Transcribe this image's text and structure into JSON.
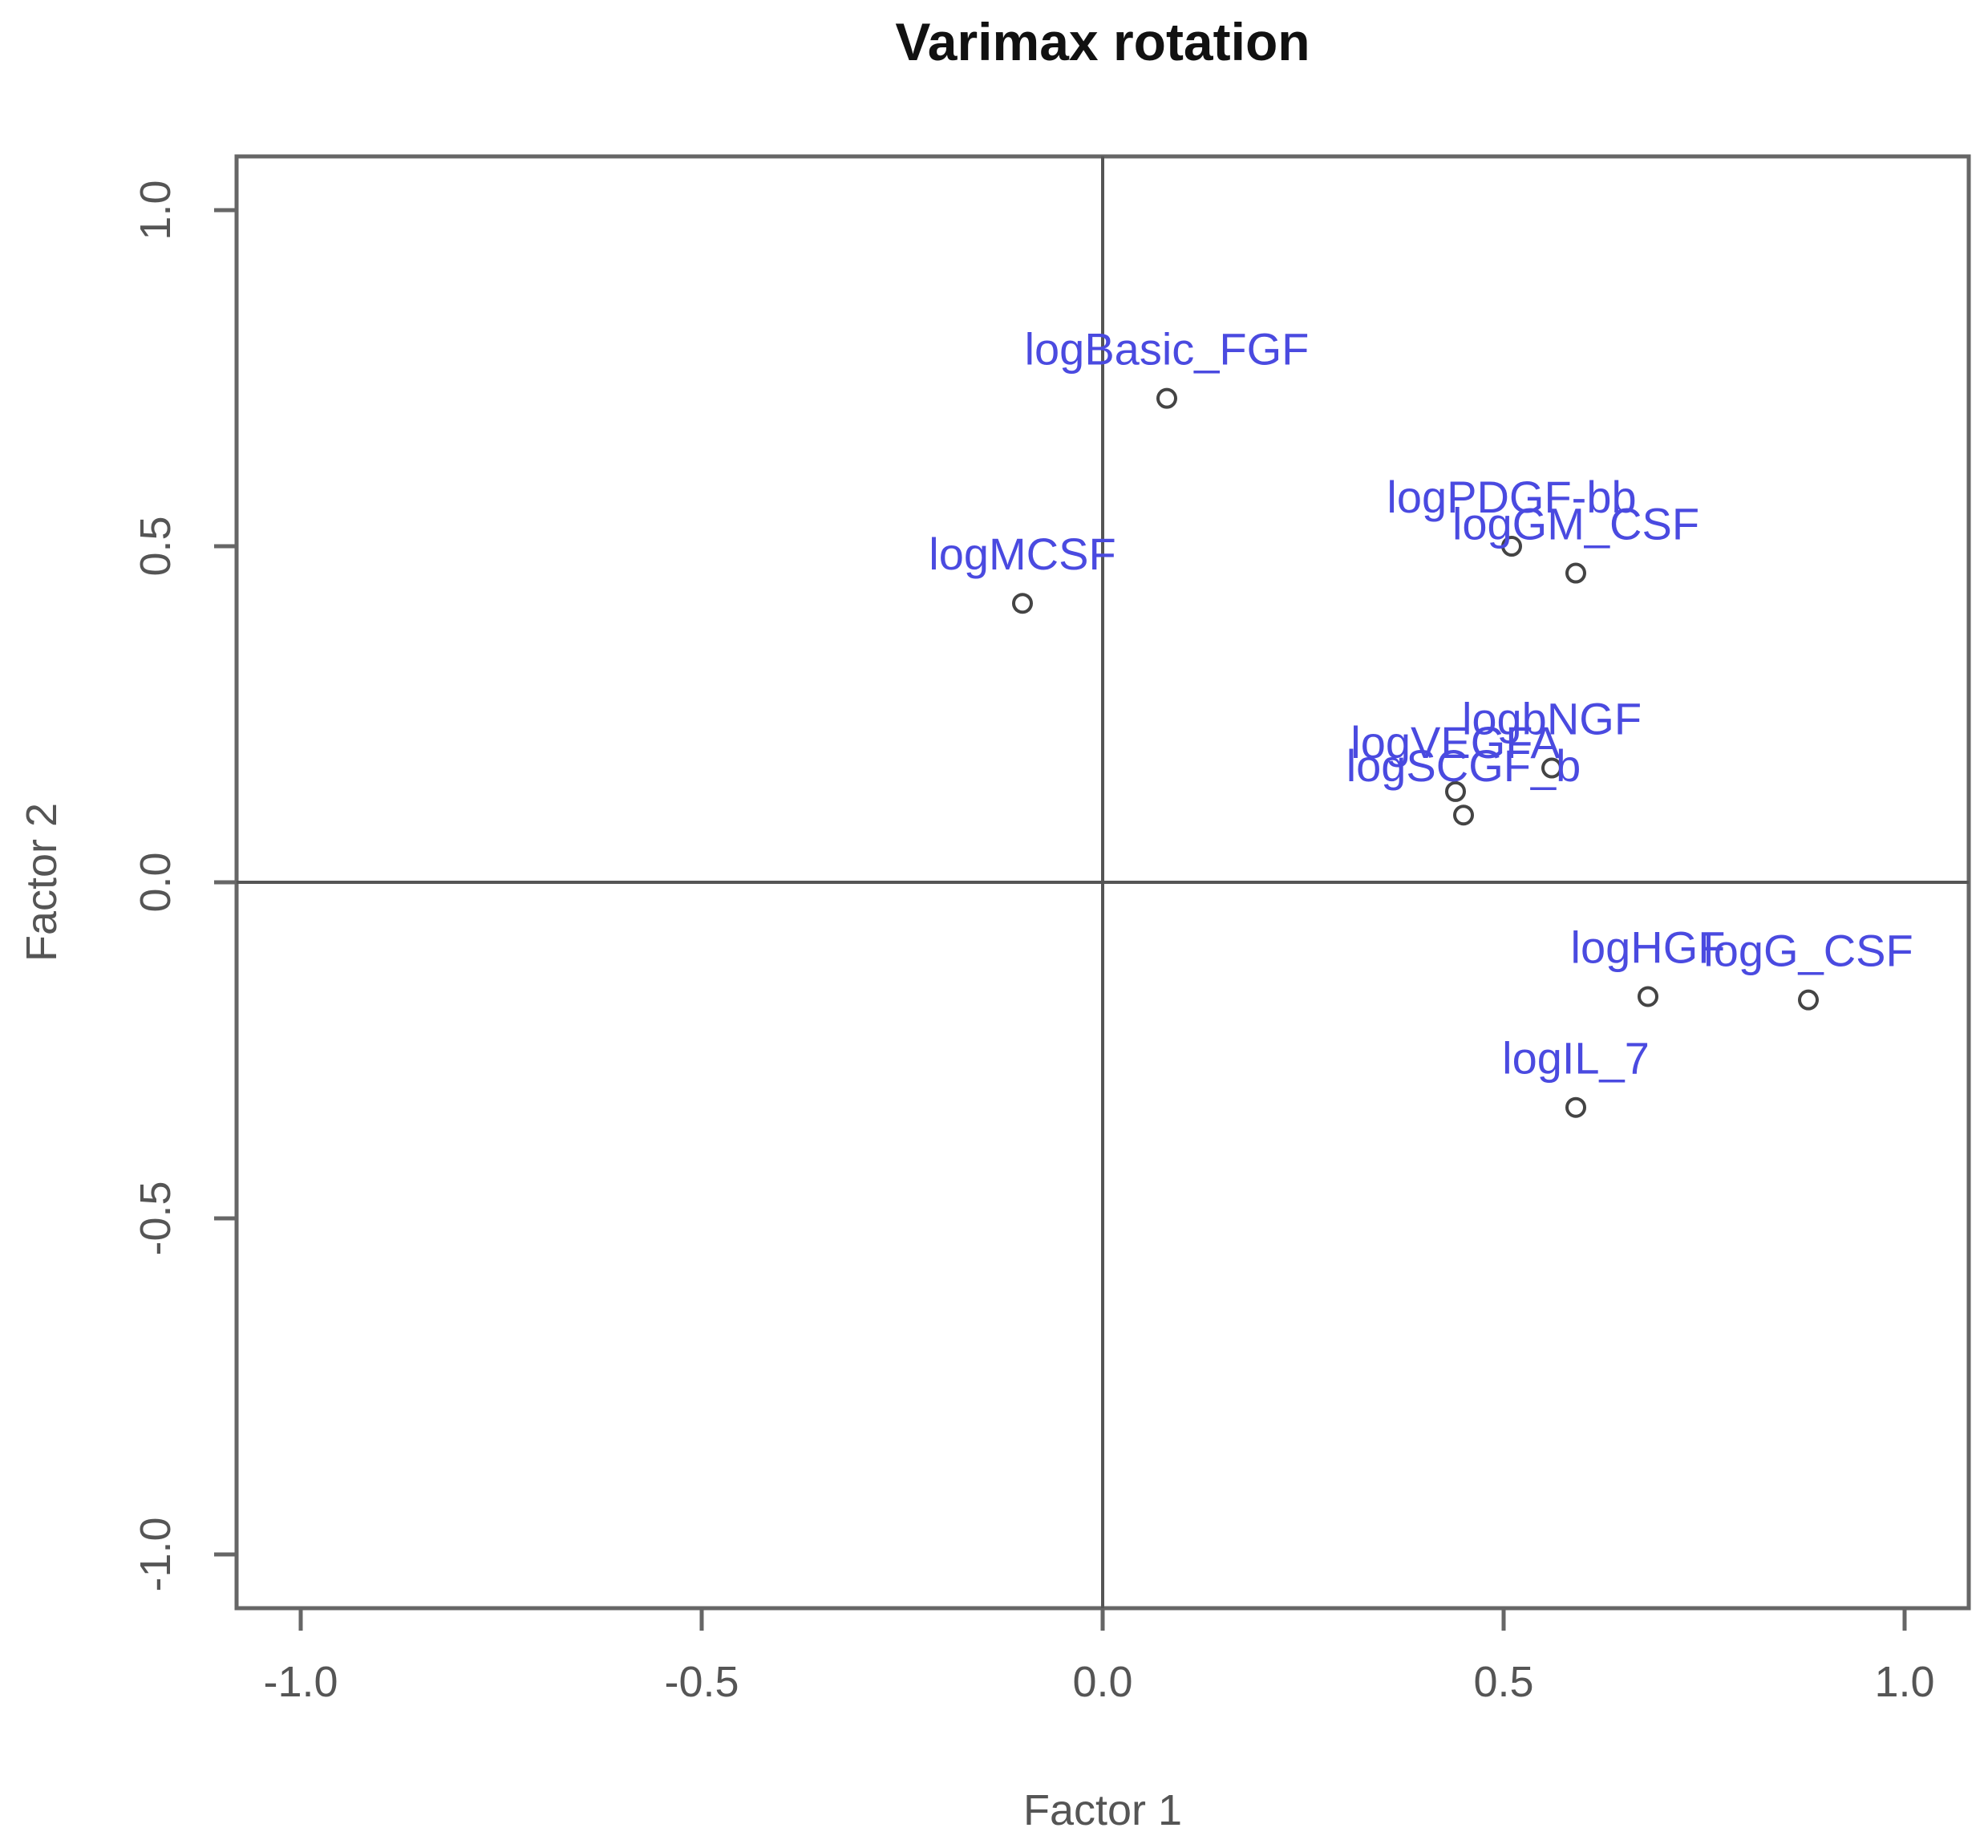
{
  "chart_data": {
    "type": "scatter",
    "title": "Varimax rotation",
    "xlabel": "Factor 1",
    "ylabel": "Factor 2",
    "xlim": [
      -1.08,
      1.08
    ],
    "ylim": [
      -1.08,
      1.08
    ],
    "xticks": [
      -1.0,
      -0.5,
      0.0,
      0.5,
      1.0
    ],
    "xtick_labels": [
      "-1.0",
      "-0.5",
      "0.0",
      "0.5",
      "1.0"
    ],
    "yticks": [
      -1.0,
      -0.5,
      0.0,
      0.5,
      1.0
    ],
    "ytick_labels": [
      "-1.0",
      "-0.5",
      "0.0",
      "0.5",
      "1.0"
    ],
    "reference_lines": {
      "x": 0,
      "y": 0
    },
    "grid": false,
    "label_color": "#4a4ae0",
    "point_color": "#444444",
    "points": [
      {
        "name": "logBasic_FGF",
        "x": 0.08,
        "y": 0.72
      },
      {
        "name": "logMCSF",
        "x": -0.1,
        "y": 0.415
      },
      {
        "name": "logPDGF-bb",
        "x": 0.51,
        "y": 0.5
      },
      {
        "name": "logGM_CSF",
        "x": 0.59,
        "y": 0.46
      },
      {
        "name": "logbNGF",
        "x": 0.56,
        "y": 0.17
      },
      {
        "name": "logVEGFA",
        "x": 0.44,
        "y": 0.135
      },
      {
        "name": "logSCGF_b",
        "x": 0.45,
        "y": 0.1
      },
      {
        "name": "logHGF",
        "x": 0.68,
        "y": -0.17
      },
      {
        "name": "logG_CSF",
        "x": 0.88,
        "y": -0.175
      },
      {
        "name": "logIL_7",
        "x": 0.59,
        "y": -0.335
      }
    ]
  }
}
